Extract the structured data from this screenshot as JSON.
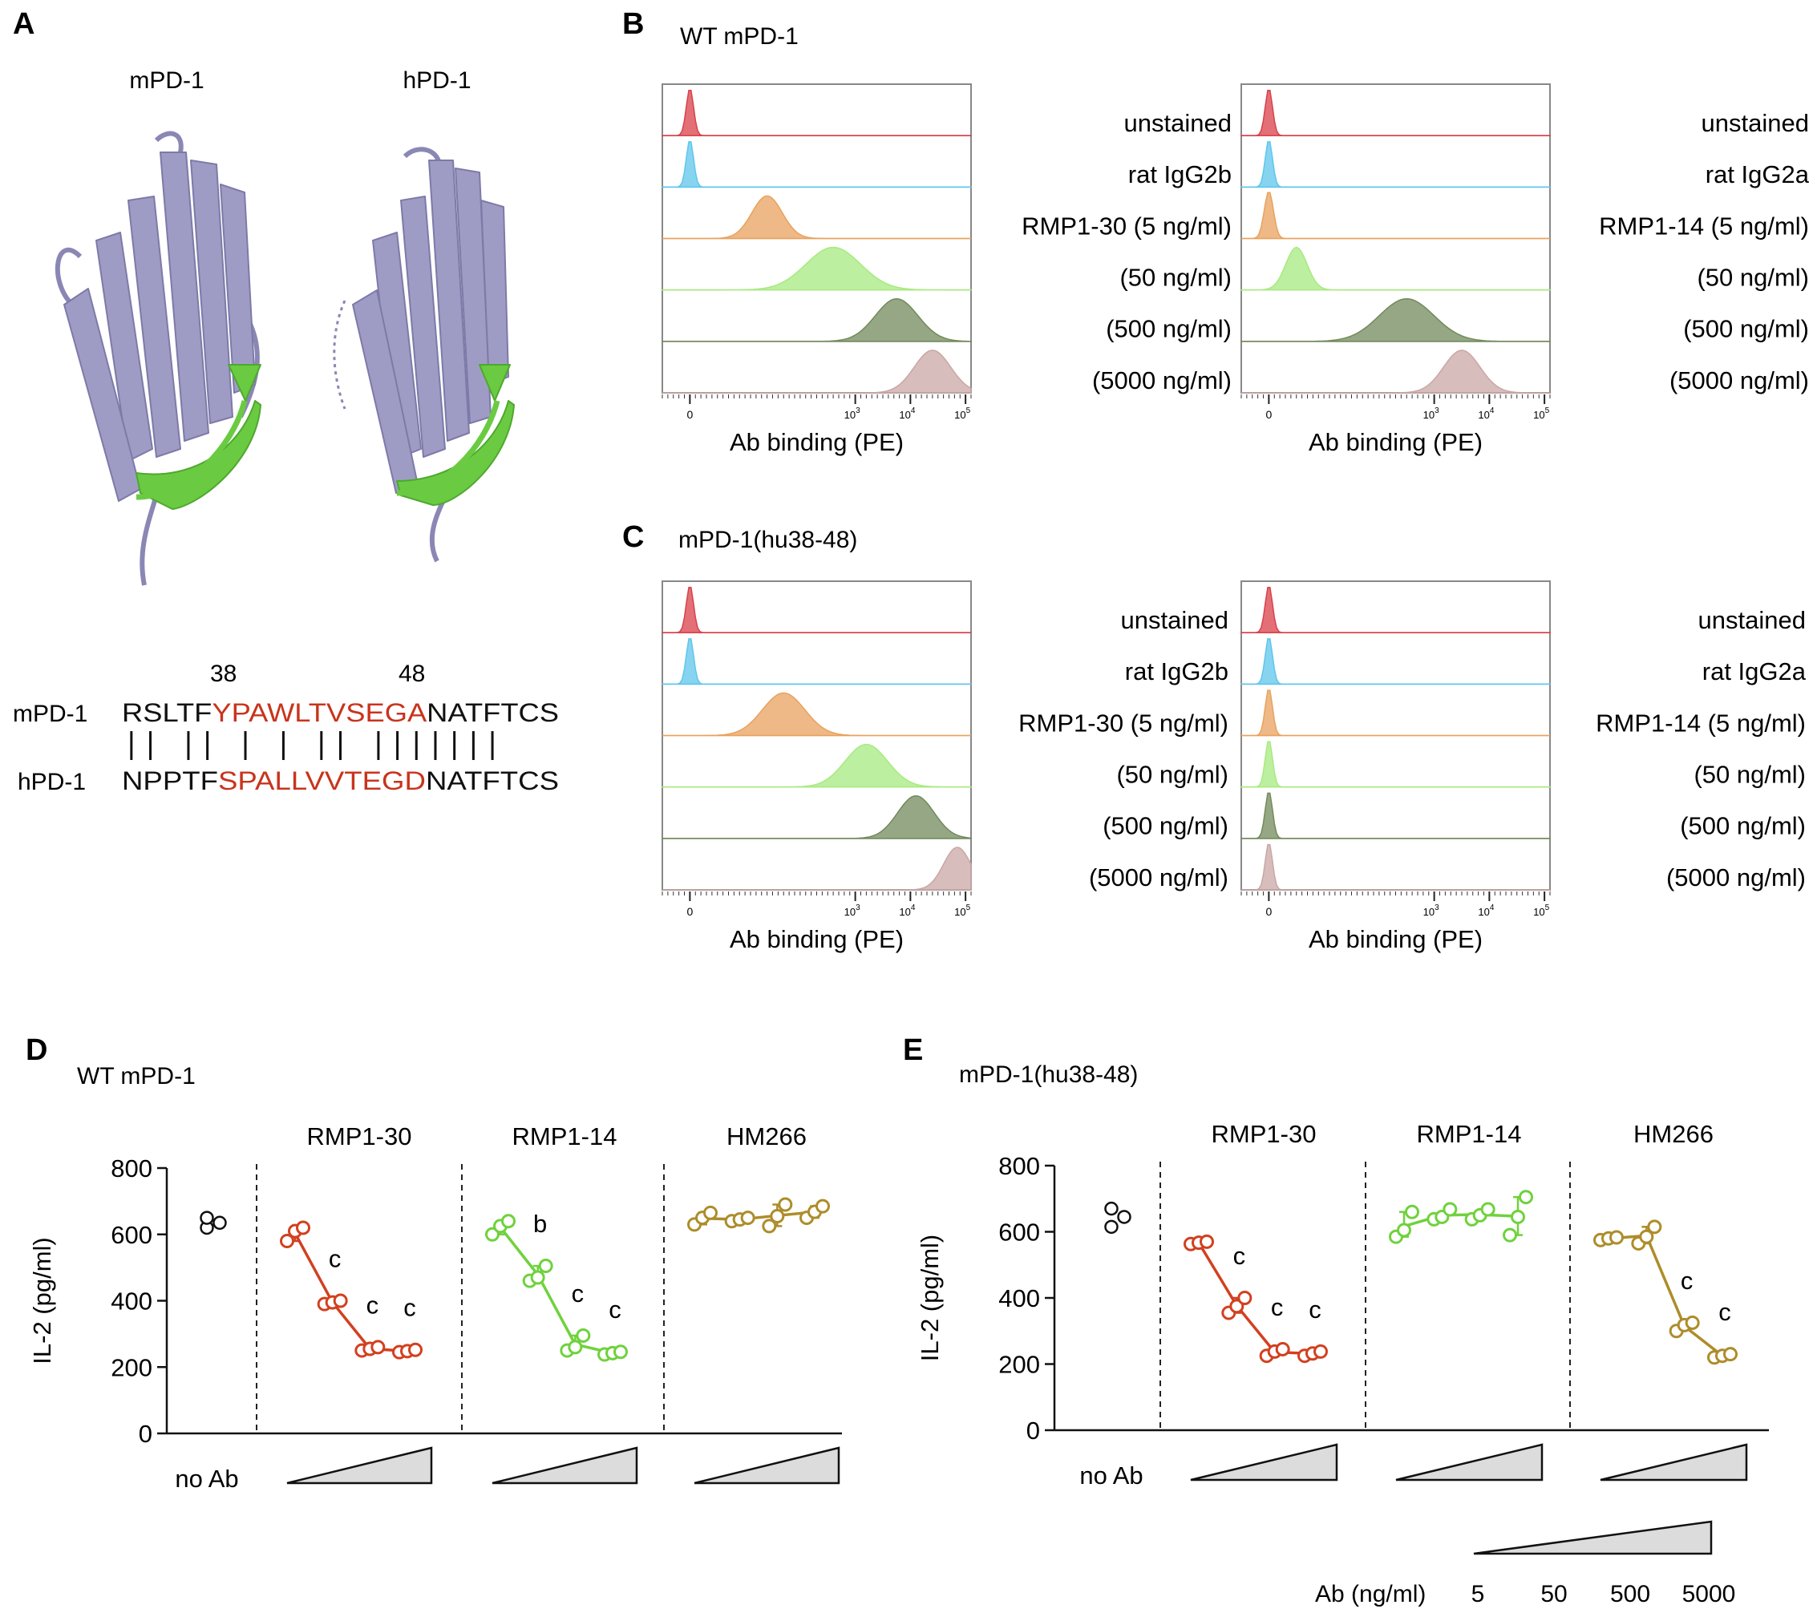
{
  "panel_letters": {
    "A": "A",
    "B": "B",
    "C": "C",
    "D": "D",
    "E": "E"
  },
  "panelA": {
    "labels": {
      "m": "mPD-1",
      "h": "hPD-1"
    },
    "positions": {
      "p38": "38",
      "p48": "48"
    },
    "m_seq": {
      "pre": "RSLTF",
      "mid": "YPAWLTVSEGA",
      "post": "NATFTCS"
    },
    "h_seq": {
      "pre": "NPPTF",
      "mid": "SPALLVVTEGD",
      "post": "NATFTCS"
    },
    "match_pattern": "11011010101101111111",
    "colors": {
      "structure": "#9e9cc4",
      "loop": "#6acb42",
      "mismatch": "#c8341c"
    }
  },
  "flow_colors": [
    "#d9404a",
    "#5fc6ec",
    "#e8a25e",
    "#a7ea80",
    "#728a5b",
    "#c9a7a5"
  ],
  "panelB": {
    "title": "WT mPD-1",
    "xlabel": "Ab binding (PE)",
    "left_labels": [
      "unstained",
      "rat IgG2b",
      "RMP1-30 (5 ng/ml)",
      "(50 ng/ml)",
      "(500 ng/ml)",
      "(5000 ng/ml)"
    ],
    "right_labels": [
      "unstained",
      "rat IgG2a",
      "RMP1-14 (5 ng/ml)",
      "(50 ng/ml)",
      "(500 ng/ml)",
      "(5000 ng/ml)"
    ],
    "left_peaks": [
      0,
      0,
      1.4,
      2.6,
      3.75,
      4.4
    ],
    "left_widths": [
      0.12,
      0.12,
      0.5,
      0.9,
      0.7,
      0.6
    ],
    "right_peaks": [
      0,
      0,
      0,
      0.5,
      2.5,
      3.5
    ],
    "right_widths": [
      0.12,
      0.12,
      0.15,
      0.35,
      0.9,
      0.6
    ]
  },
  "panelC": {
    "title": "mPD-1(hu38-48)",
    "xlabel": "Ab binding (PE)",
    "left_labels": [
      "unstained",
      "rat IgG2b",
      "RMP1-30 (5 ng/ml)",
      "(50 ng/ml)",
      "(500 ng/ml)",
      "(5000 ng/ml)"
    ],
    "right_labels": [
      "unstained",
      "rat IgG2a",
      "RMP1-14 (5 ng/ml)",
      "(50 ng/ml)",
      "(500 ng/ml)",
      "(5000 ng/ml)"
    ],
    "left_peaks": [
      0,
      0,
      1.7,
      3.2,
      4.1,
      4.85
    ],
    "left_widths": [
      0.12,
      0.12,
      0.7,
      0.7,
      0.6,
      0.45
    ],
    "right_peaks": [
      0,
      0,
      0,
      0,
      0,
      0
    ],
    "right_widths": [
      0.12,
      0.12,
      0.12,
      0.12,
      0.12,
      0.12
    ]
  },
  "flow_ticks": [
    "0",
    "10",
    "3",
    "10",
    "4",
    "10",
    "5"
  ],
  "chart_data": [
    {
      "type": "scatter",
      "panel": "D",
      "title": "WT mPD-1",
      "ylabel": "IL-2 (pg/ml)",
      "ylim": [
        0,
        800
      ],
      "yticks": [
        "0",
        "200",
        "400",
        "600",
        "800"
      ],
      "noab_label": "no Ab",
      "noab": [
        620,
        635,
        650
      ],
      "groups": [
        {
          "name": "RMP1-30",
          "color": "#d2401f",
          "sig": [
            "",
            "c",
            "c",
            "c"
          ],
          "reps": [
            [
              580,
              610,
              620
            ],
            [
              390,
              395,
              400
            ],
            [
              250,
              255,
              260
            ],
            [
              245,
              248,
              252
            ]
          ]
        },
        {
          "name": "RMP1-14",
          "color": "#6fd23c",
          "sig": [
            "",
            "b",
            "c",
            "c"
          ],
          "reps": [
            [
              600,
              625,
              640
            ],
            [
              460,
              470,
              505
            ],
            [
              250,
              260,
              295
            ],
            [
              238,
              242,
              246
            ]
          ]
        },
        {
          "name": "HM266",
          "color": "#ad8d2a",
          "sig": [
            "",
            "",
            "",
            ""
          ],
          "reps": [
            [
              630,
              650,
              665
            ],
            [
              640,
              645,
              650
            ],
            [
              625,
              655,
              690
            ],
            [
              650,
              668,
              685
            ]
          ]
        }
      ]
    },
    {
      "type": "scatter",
      "panel": "E",
      "title": "mPD-1(hu38-48)",
      "ylabel": "IL-2 (pg/ml)",
      "ylim": [
        0,
        800
      ],
      "yticks": [
        "0",
        "200",
        "400",
        "600",
        "800"
      ],
      "noab_label": "no Ab",
      "noab": [
        615,
        645,
        670
      ],
      "groups": [
        {
          "name": "RMP1-30",
          "color": "#d2401f",
          "sig": [
            "",
            "c",
            "c",
            "c"
          ],
          "reps": [
            [
              563,
              567,
              570
            ],
            [
              355,
              375,
              400
            ],
            [
              225,
              238,
              245
            ],
            [
              225,
              232,
              238
            ]
          ]
        },
        {
          "name": "RMP1-14",
          "color": "#6fd23c",
          "sig": [
            "",
            "",
            "",
            ""
          ],
          "reps": [
            [
              585,
              605,
              660
            ],
            [
              638,
              645,
              668
            ],
            [
              638,
              650,
              668
            ],
            [
              590,
              645,
              705
            ]
          ]
        },
        {
          "name": "HM266",
          "color": "#ad8d2a",
          "sig": [
            "",
            "",
            "c",
            "c"
          ],
          "reps": [
            [
              575,
              580,
              583
            ],
            [
              565,
              585,
              615
            ],
            [
              300,
              318,
              325
            ],
            [
              220,
              225,
              230
            ]
          ]
        }
      ]
    }
  ],
  "scale_key": {
    "label": "Ab (ng/ml)",
    "ticks": [
      "5",
      "50",
      "500",
      "5000"
    ]
  }
}
